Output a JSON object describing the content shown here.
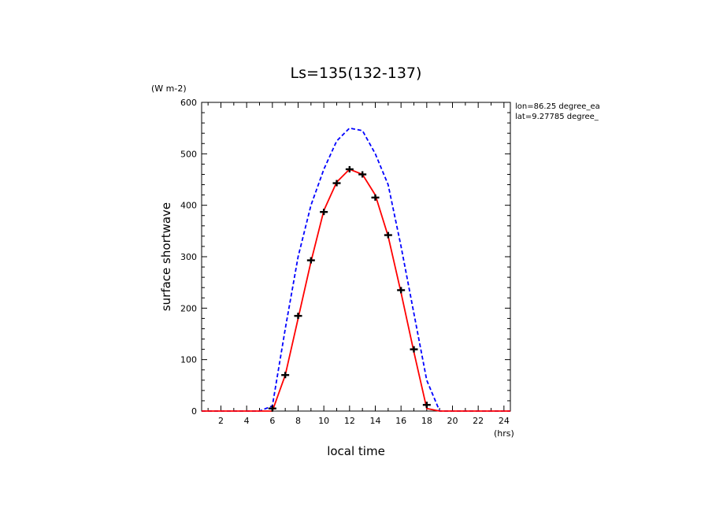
{
  "chart_data": {
    "type": "line",
    "title": "Ls=135(132-137)",
    "xlabel": "local time",
    "xunit": "(hrs)",
    "ylabel": "surface shortwave",
    "yunit": "(W m-2)",
    "annotations": [
      "lon=86.25 degree_ea",
      "lat=9.27785 degree_"
    ],
    "xlim": [
      0.5,
      24.5
    ],
    "ylim": [
      0,
      600
    ],
    "xticks": [
      2,
      4,
      6,
      8,
      10,
      12,
      14,
      16,
      18,
      20,
      22,
      24
    ],
    "yticks": [
      0,
      100,
      200,
      300,
      400,
      500,
      600
    ],
    "grid": false,
    "x": [
      0.5,
      1,
      2,
      3,
      4,
      5,
      6,
      7,
      8,
      9,
      10,
      11,
      12,
      13,
      14,
      15,
      16,
      17,
      18,
      19,
      20,
      21,
      22,
      23,
      24,
      24.5
    ],
    "series": [
      {
        "color": "#0000ff",
        "style": "dashed",
        "values": [
          0,
          0,
          0,
          0,
          0,
          0,
          10,
          160,
          300,
          400,
          470,
          525,
          550,
          545,
          500,
          440,
          320,
          190,
          60,
          0,
          0,
          0,
          0,
          0,
          0,
          0
        ]
      },
      {
        "color": "#ff0000",
        "style": "solid",
        "values": [
          0,
          0,
          0,
          0,
          0,
          0,
          0,
          70,
          180,
          290,
          390,
          445,
          470,
          460,
          420,
          340,
          230,
          115,
          5,
          0,
          0,
          0,
          0,
          0,
          0,
          0
        ]
      }
    ],
    "observations": {
      "color": "#000000",
      "marker": "cross",
      "points": [
        {
          "x": 6,
          "y": 5
        },
        {
          "x": 7,
          "y": 70
        },
        {
          "x": 8,
          "y": 185
        },
        {
          "x": 9,
          "y": 293
        },
        {
          "x": 10,
          "y": 387
        },
        {
          "x": 11,
          "y": 443
        },
        {
          "x": 12,
          "y": 470
        },
        {
          "x": 13,
          "y": 460
        },
        {
          "x": 14,
          "y": 415
        },
        {
          "x": 15,
          "y": 342
        },
        {
          "x": 16,
          "y": 235
        },
        {
          "x": 17,
          "y": 120
        },
        {
          "x": 18,
          "y": 12
        }
      ]
    }
  }
}
